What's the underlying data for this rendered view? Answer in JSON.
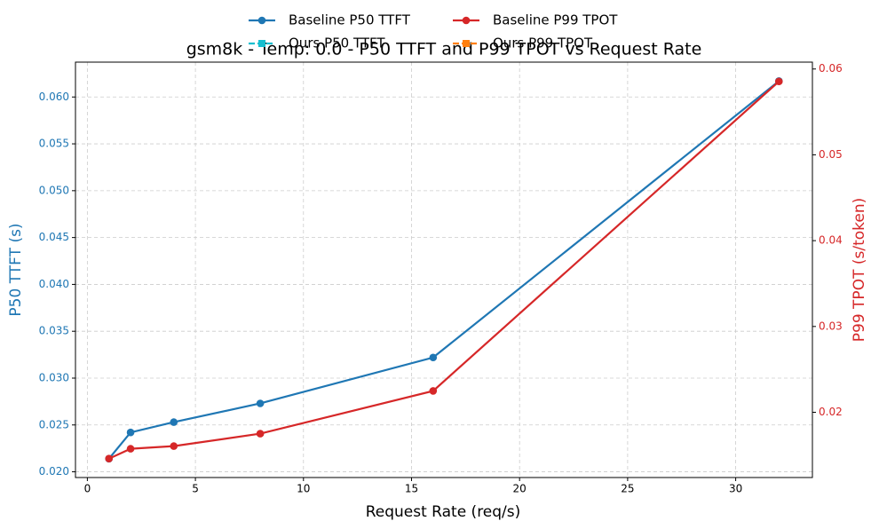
{
  "chart_data": {
    "type": "line",
    "title": "gsm8k - Temp: 0.0 - P50 TTFT and P99 TPOT vs Request Rate",
    "xlabel": "Request Rate (req/s)",
    "ylabel": "P50 TTFT (s)",
    "y2label": "P99 TPOT (s/token)",
    "x": [
      1,
      2,
      4,
      8,
      16,
      32
    ],
    "series": [
      {
        "name": "Baseline P50 TTFT",
        "color": "#1f77b4",
        "marker": "circle",
        "linestyle": "solid",
        "values": [
          0.0214,
          0.0242,
          0.0253,
          0.0273,
          0.0322,
          0.0617
        ]
      },
      {
        "name": "Ours P50 TTFT",
        "color": "#17becf",
        "marker": "square",
        "linestyle": "dashed",
        "values": [
          null,
          null,
          null,
          null,
          null,
          null
        ]
      },
      {
        "name": "Baseline P99 TPOT",
        "color": "#d62728",
        "marker": "circle",
        "linestyle": "solid",
        "axis": "y2",
        "values": [
          0.0146,
          0.01575,
          0.01606,
          0.01751,
          0.02249,
          0.05855
        ]
      },
      {
        "name": "Ours P99 TPOT",
        "color": "#ff7f0e",
        "marker": "square",
        "linestyle": "dashed",
        "axis": "y2",
        "values": [
          null,
          null,
          null,
          null,
          null,
          null
        ]
      }
    ],
    "xlim": [
      -0.55,
      33.55
    ],
    "xticks": [
      0,
      5,
      10,
      15,
      20,
      25,
      30
    ],
    "ylim": [
      0.01939,
      0.06372
    ],
    "yticks": [
      {
        "value": 0.02,
        "label": "0.020"
      },
      0.025,
      {
        "value": 0.03,
        "label": "0.030"
      },
      0.035,
      {
        "value": 0.04,
        "label": "0.040"
      },
      0.045,
      {
        "value": 0.05,
        "label": "0.050"
      },
      0.055,
      {
        "value": 0.06,
        "label": "0.060"
      }
    ],
    "y2lim": [
      0.0124,
      0.0608
    ],
    "y2ticks": [
      0.02,
      0.03,
      0.04,
      0.05,
      0.06
    ],
    "grid": true,
    "legend": "upper center"
  }
}
